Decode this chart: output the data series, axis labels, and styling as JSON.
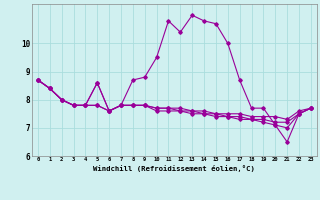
{
  "x": [
    0,
    1,
    2,
    3,
    4,
    5,
    6,
    7,
    8,
    9,
    10,
    11,
    12,
    13,
    14,
    15,
    16,
    17,
    18,
    19,
    20,
    21,
    22,
    23
  ],
  "line1": [
    8.7,
    8.4,
    8.0,
    7.8,
    7.8,
    8.6,
    7.6,
    7.8,
    8.7,
    8.8,
    9.5,
    10.8,
    10.4,
    11.0,
    10.8,
    10.7,
    10.0,
    8.7,
    7.7,
    7.7,
    7.1,
    6.5,
    7.5,
    7.7
  ],
  "line2": [
    8.7,
    8.4,
    8.0,
    7.8,
    7.8,
    8.6,
    7.6,
    7.8,
    7.8,
    7.8,
    7.7,
    7.7,
    7.7,
    7.6,
    7.6,
    7.5,
    7.5,
    7.5,
    7.4,
    7.4,
    7.4,
    7.3,
    7.6,
    7.7
  ],
  "line3": [
    8.7,
    8.4,
    8.0,
    7.8,
    7.8,
    7.8,
    7.6,
    7.8,
    7.8,
    7.8,
    7.7,
    7.7,
    7.6,
    7.6,
    7.5,
    7.5,
    7.4,
    7.4,
    7.3,
    7.3,
    7.2,
    7.2,
    7.5,
    7.7
  ],
  "line4": [
    8.7,
    8.4,
    8.0,
    7.8,
    7.8,
    7.8,
    7.6,
    7.8,
    7.8,
    7.8,
    7.6,
    7.6,
    7.6,
    7.5,
    7.5,
    7.4,
    7.4,
    7.3,
    7.3,
    7.2,
    7.1,
    7.0,
    7.5,
    7.7
  ],
  "color": "#990099",
  "bg_color": "#d0f0f0",
  "grid_color": "#aadddd",
  "xlabel": "Windchill (Refroidissement éolien,°C)",
  "ylim": [
    6,
    11
  ],
  "xlim": [
    -0.5,
    23.5
  ],
  "yticks": [
    6,
    7,
    8,
    9,
    10
  ],
  "xticks": [
    0,
    1,
    2,
    3,
    4,
    5,
    6,
    7,
    8,
    9,
    10,
    11,
    12,
    13,
    14,
    15,
    16,
    17,
    18,
    19,
    20,
    21,
    22,
    23
  ]
}
